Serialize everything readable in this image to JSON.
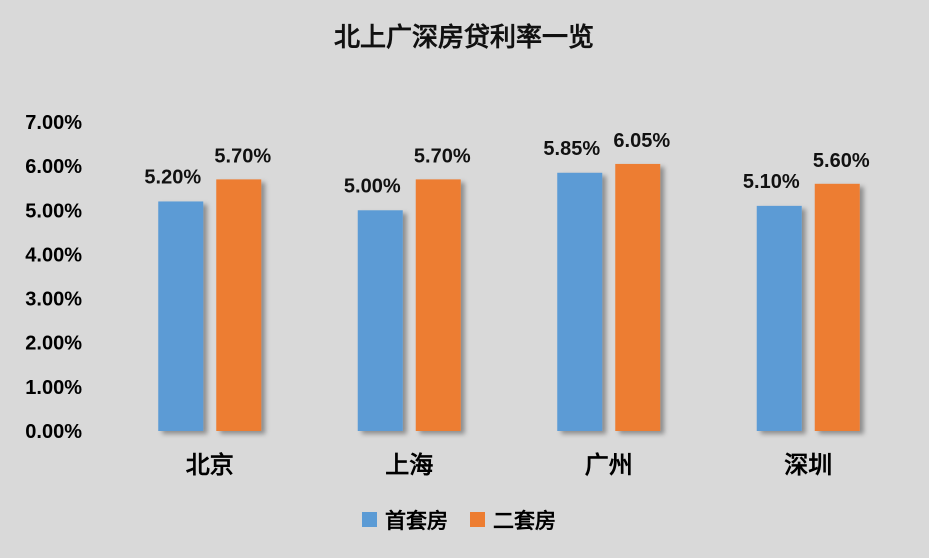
{
  "chart_data": {
    "type": "bar",
    "title": "北上广深房贷利率一览",
    "categories": [
      "北京",
      "上海",
      "广州",
      "深圳"
    ],
    "series": [
      {
        "name": "首套房",
        "values": [
          5.2,
          5.0,
          5.85,
          5.1
        ],
        "labels": [
          "5.20%",
          "5.00%",
          "5.85%",
          "5.10%"
        ],
        "color": "#5b9bd5"
      },
      {
        "name": "二套房",
        "values": [
          5.7,
          5.7,
          6.05,
          5.6
        ],
        "labels": [
          "5.70%",
          "5.70%",
          "6.05%",
          "5.60%"
        ],
        "color": "#ed7d31"
      }
    ],
    "ylim": [
      0,
      7
    ],
    "yticks": [
      0,
      1,
      2,
      3,
      4,
      5,
      6,
      7
    ],
    "ytick_labels": [
      "0.00%",
      "1.00%",
      "2.00%",
      "3.00%",
      "4.00%",
      "5.00%",
      "6.00%",
      "7.00%"
    ],
    "grid": false,
    "legend_position": "bottom"
  }
}
